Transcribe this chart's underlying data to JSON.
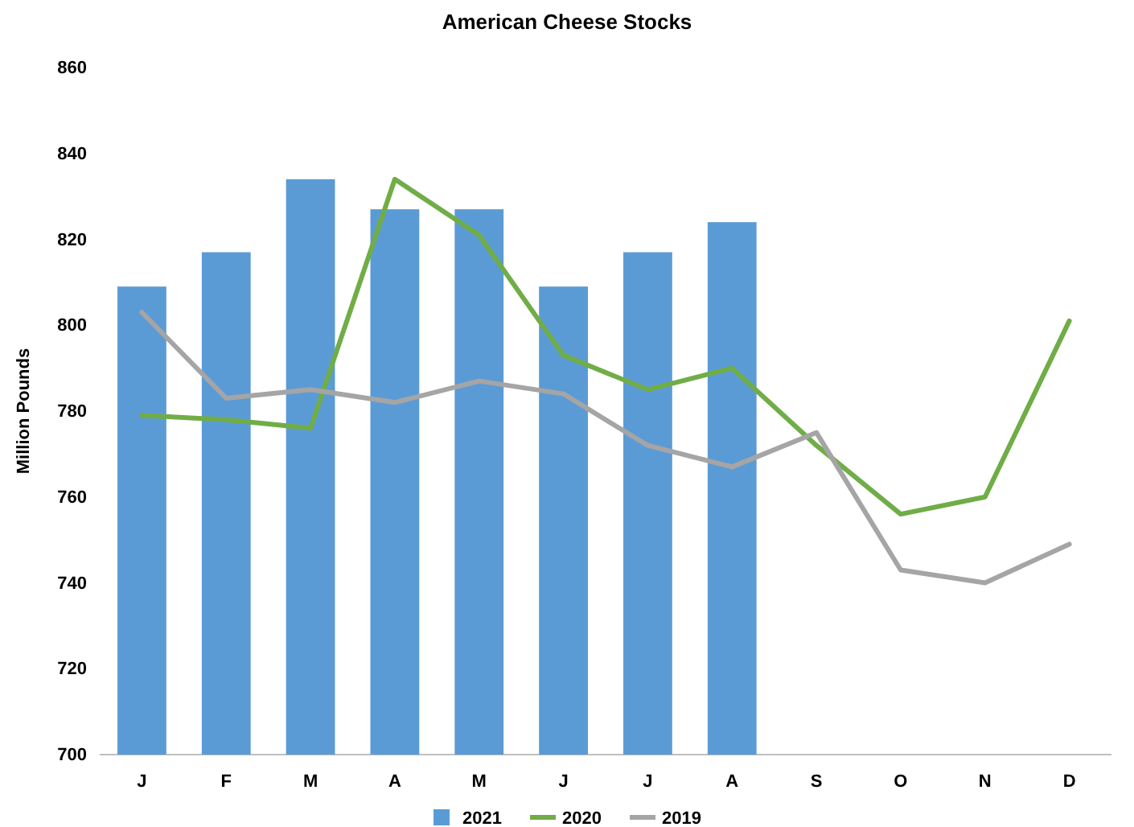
{
  "chart_data": {
    "type": "bar",
    "title": "American Cheese Stocks",
    "ylabel": "Million Pounds",
    "categories": [
      "J",
      "F",
      "M",
      "A",
      "M",
      "J",
      "J",
      "A",
      "S",
      "O",
      "N",
      "D"
    ],
    "series": [
      {
        "name": "2021",
        "color": "#5b9bd5",
        "values": [
          809,
          817,
          834,
          827,
          827,
          809,
          817,
          824,
          null,
          null,
          null,
          null
        ]
      },
      {
        "name": "2020",
        "type": "line",
        "color": "#70ad47",
        "values": [
          779,
          778,
          776,
          834,
          821,
          793,
          785,
          790,
          772,
          756,
          760,
          801
        ]
      },
      {
        "name": "2019",
        "type": "line",
        "color": "#a5a5a5",
        "values": [
          803,
          783,
          785,
          782,
          787,
          784,
          772,
          767,
          775,
          743,
          740,
          749
        ]
      }
    ],
    "ylim": [
      700,
      860
    ],
    "yticks": [
      700,
      720,
      740,
      760,
      780,
      800,
      820,
      840,
      860
    ],
    "grid": false,
    "legend": "bottom",
    "marker": "none",
    "line_style": "solid"
  }
}
